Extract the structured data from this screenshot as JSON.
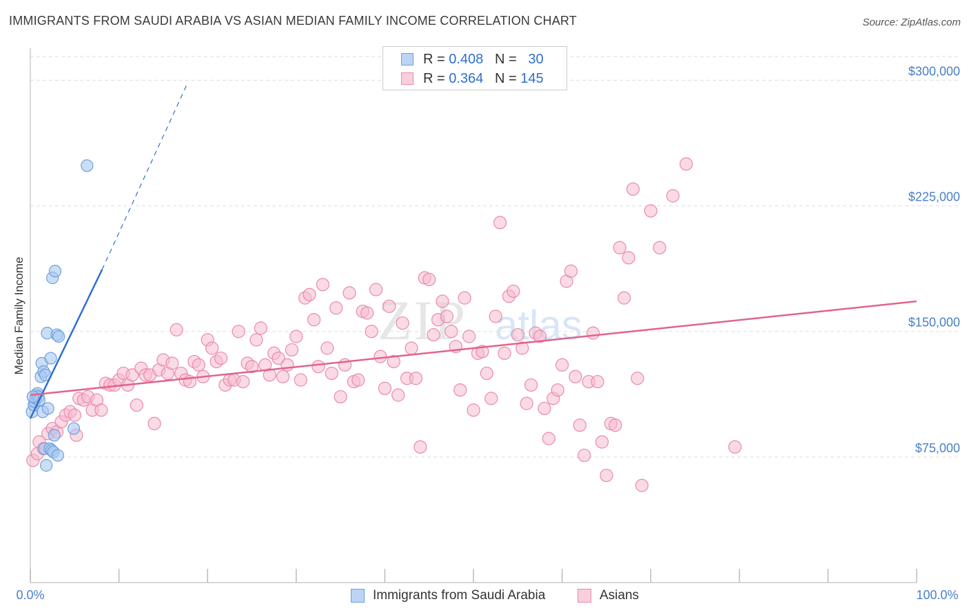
{
  "header": {
    "title": "IMMIGRANTS FROM SAUDI ARABIA VS ASIAN MEDIAN FAMILY INCOME CORRELATION CHART",
    "source": "Source: ZipAtlas.com"
  },
  "legend": {
    "rows": [
      {
        "r_label": "R =",
        "r_value": "0.408",
        "n_label": "N =",
        "n_value": "30"
      },
      {
        "r_label": "R =",
        "r_value": "0.364",
        "n_label": "N =",
        "n_value": "145"
      }
    ]
  },
  "bottom_legend": {
    "items": [
      {
        "label": "Immigrants from Saudi Arabia"
      },
      {
        "label": "Asians"
      }
    ]
  },
  "watermark": "ZIPatlas",
  "colors": {
    "blue_fill": "#a8c8f0",
    "blue_stroke": "#6f9fdc",
    "blue_line": "#2f6ed0",
    "pink_fill": "#f6bcd0",
    "pink_stroke": "#e98aab",
    "pink_line": "#e0638f",
    "tick_text": "#4a7fc8",
    "grid": "#dddddd"
  },
  "chart_data": {
    "type": "scatter",
    "title": "IMMIGRANTS FROM SAUDI ARABIA VS ASIAN MEDIAN FAMILY INCOME CORRELATION CHART",
    "xlabel": "",
    "ylabel": "Median Family Income",
    "xlim": [
      0,
      100
    ],
    "ylim": [
      0,
      315000
    ],
    "x_tick_labels": [
      "0.0%",
      "100.0%"
    ],
    "y_ticks": [
      75000,
      150000,
      225000,
      300000
    ],
    "y_tick_labels": [
      "$75,000",
      "$150,000",
      "$225,000",
      "$300,000"
    ],
    "grid": true,
    "legend_placement": "top-center",
    "series": [
      {
        "name": "Immigrants from Saudi Arabia",
        "color": "#a8c8f0",
        "points": [
          [
            0.2,
            102000
          ],
          [
            0.4,
            106000
          ],
          [
            0.5,
            108000
          ],
          [
            0.6,
            110000
          ],
          [
            0.7,
            112000
          ],
          [
            0.8,
            113000
          ],
          [
            0.9,
            111000
          ],
          [
            1.0,
            109000
          ],
          [
            1.2,
            123000
          ],
          [
            1.3,
            131000
          ],
          [
            1.4,
            102000
          ],
          [
            1.5,
            126000
          ],
          [
            1.6,
            80000
          ],
          [
            1.7,
            124000
          ],
          [
            1.8,
            70000
          ],
          [
            1.9,
            149000
          ],
          [
            2.0,
            104000
          ],
          [
            2.2,
            80000
          ],
          [
            2.3,
            134000
          ],
          [
            2.4,
            79000
          ],
          [
            2.5,
            182000
          ],
          [
            2.6,
            78000
          ],
          [
            2.7,
            88000
          ],
          [
            2.8,
            186000
          ],
          [
            3.0,
            148000
          ],
          [
            3.1,
            76000
          ],
          [
            3.2,
            147000
          ],
          [
            4.9,
            92000
          ],
          [
            6.4,
            249000
          ],
          [
            0.3,
            111000
          ]
        ],
        "trendline": {
          "from": [
            0,
            98000
          ],
          "to": [
            8.1,
            187000
          ],
          "dashed_to": [
            17.8,
            299000
          ]
        }
      },
      {
        "name": "Asians",
        "color": "#f6bcd0",
        "points": [
          [
            0.3,
            73000
          ],
          [
            0.8,
            77000
          ],
          [
            1.0,
            84000
          ],
          [
            1.5,
            80000
          ],
          [
            2.0,
            89000
          ],
          [
            2.5,
            92000
          ],
          [
            3.0,
            90000
          ],
          [
            3.5,
            96000
          ],
          [
            4.0,
            100000
          ],
          [
            4.5,
            102000
          ],
          [
            5.0,
            100000
          ],
          [
            5.5,
            110000
          ],
          [
            6.0,
            109000
          ],
          [
            6.5,
            111000
          ],
          [
            7.0,
            103000
          ],
          [
            7.5,
            109000
          ],
          [
            8.0,
            103000
          ],
          [
            8.5,
            119000
          ],
          [
            9.0,
            118000
          ],
          [
            9.5,
            118000
          ],
          [
            10.0,
            121000
          ],
          [
            10.5,
            125000
          ],
          [
            11.0,
            118000
          ],
          [
            11.5,
            124000
          ],
          [
            12.0,
            106000
          ],
          [
            12.5,
            128000
          ],
          [
            13.0,
            124000
          ],
          [
            13.5,
            124000
          ],
          [
            14.0,
            95000
          ],
          [
            14.5,
            127000
          ],
          [
            15.0,
            133000
          ],
          [
            15.5,
            125000
          ],
          [
            16.0,
            131000
          ],
          [
            16.5,
            151000
          ],
          [
            17.0,
            125000
          ],
          [
            17.5,
            121000
          ],
          [
            18.0,
            120000
          ],
          [
            18.5,
            132000
          ],
          [
            19.0,
            130000
          ],
          [
            19.5,
            123000
          ],
          [
            20.0,
            145000
          ],
          [
            20.5,
            140000
          ],
          [
            21.0,
            132000
          ],
          [
            21.5,
            134000
          ],
          [
            22.0,
            118000
          ],
          [
            22.5,
            121000
          ],
          [
            23.0,
            121000
          ],
          [
            23.5,
            150000
          ],
          [
            24.0,
            120000
          ],
          [
            24.5,
            131000
          ],
          [
            25.0,
            129000
          ],
          [
            25.5,
            145000
          ],
          [
            26.0,
            152000
          ],
          [
            26.5,
            130000
          ],
          [
            27.0,
            124000
          ],
          [
            27.5,
            137000
          ],
          [
            28.0,
            134000
          ],
          [
            28.5,
            123000
          ],
          [
            29.0,
            130000
          ],
          [
            29.5,
            139000
          ],
          [
            30.0,
            147000
          ],
          [
            30.5,
            121000
          ],
          [
            31.0,
            170000
          ],
          [
            31.5,
            172000
          ],
          [
            32.0,
            157000
          ],
          [
            32.5,
            129000
          ],
          [
            33.0,
            178000
          ],
          [
            33.5,
            140000
          ],
          [
            34.0,
            125000
          ],
          [
            34.5,
            164000
          ],
          [
            35.0,
            111000
          ],
          [
            35.5,
            130000
          ],
          [
            36.0,
            173000
          ],
          [
            36.5,
            120000
          ],
          [
            37.0,
            121000
          ],
          [
            37.5,
            162000
          ],
          [
            38.0,
            161000
          ],
          [
            38.5,
            150000
          ],
          [
            39.0,
            175000
          ],
          [
            39.5,
            135000
          ],
          [
            40.0,
            116000
          ],
          [
            40.5,
            165000
          ],
          [
            41.0,
            132000
          ],
          [
            41.5,
            112000
          ],
          [
            42.0,
            155000
          ],
          [
            42.5,
            122000
          ],
          [
            43.0,
            140000
          ],
          [
            43.5,
            122000
          ],
          [
            44.0,
            81000
          ],
          [
            44.5,
            182000
          ],
          [
            45.0,
            181000
          ],
          [
            45.5,
            148000
          ],
          [
            46.0,
            157000
          ],
          [
            46.5,
            168000
          ],
          [
            47.0,
            159000
          ],
          [
            47.5,
            150000
          ],
          [
            48.0,
            141000
          ],
          [
            48.5,
            115000
          ],
          [
            49.0,
            170000
          ],
          [
            49.5,
            147000
          ],
          [
            50.0,
            103000
          ],
          [
            50.5,
            137000
          ],
          [
            51.0,
            138000
          ],
          [
            51.5,
            125000
          ],
          [
            52.0,
            110000
          ],
          [
            52.5,
            159000
          ],
          [
            53.0,
            215000
          ],
          [
            53.5,
            137000
          ],
          [
            54.0,
            171000
          ],
          [
            54.5,
            174000
          ],
          [
            55.0,
            148000
          ],
          [
            55.5,
            140000
          ],
          [
            56.0,
            107000
          ],
          [
            56.5,
            118000
          ],
          [
            57.0,
            149000
          ],
          [
            57.5,
            147000
          ],
          [
            58.0,
            104000
          ],
          [
            58.5,
            86000
          ],
          [
            59.0,
            110000
          ],
          [
            59.5,
            115000
          ],
          [
            60.0,
            130000
          ],
          [
            60.5,
            180000
          ],
          [
            61.0,
            186000
          ],
          [
            61.5,
            123000
          ],
          [
            62.0,
            94000
          ],
          [
            62.5,
            76000
          ],
          [
            63.0,
            120000
          ],
          [
            63.5,
            149000
          ],
          [
            64.0,
            120000
          ],
          [
            64.5,
            84000
          ],
          [
            65.0,
            64000
          ],
          [
            65.5,
            95000
          ],
          [
            66.0,
            94000
          ],
          [
            66.5,
            200000
          ],
          [
            67.0,
            170000
          ],
          [
            67.5,
            194000
          ],
          [
            68.0,
            235000
          ],
          [
            68.5,
            122000
          ],
          [
            69.0,
            58000
          ],
          [
            70.0,
            222000
          ],
          [
            71.0,
            200000
          ],
          [
            72.5,
            231000
          ],
          [
            79.5,
            81000
          ],
          [
            74.0,
            250000
          ],
          [
            5.2,
            88000
          ]
        ],
        "trendline": {
          "from": [
            0,
            112000
          ],
          "to": [
            100,
            168000
          ]
        }
      }
    ]
  }
}
